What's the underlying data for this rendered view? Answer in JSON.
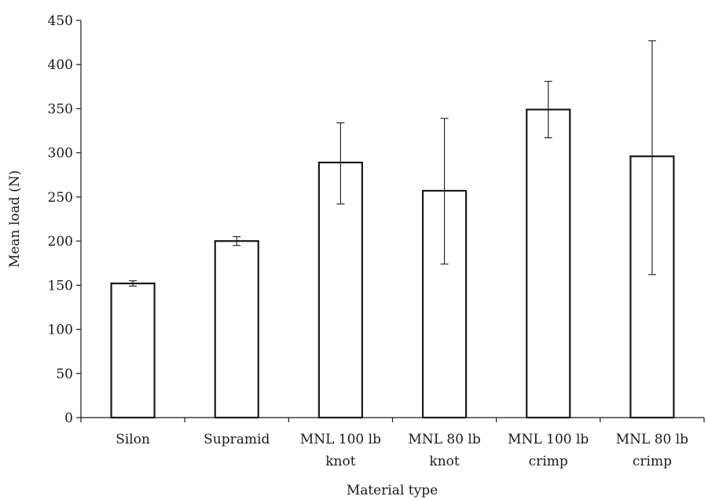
{
  "chart_data": {
    "type": "bar",
    "title": "",
    "xlabel": "Material type",
    "ylabel": "Mean load (N)",
    "ylim": [
      0,
      450
    ],
    "yticks": [
      0,
      50,
      100,
      150,
      200,
      250,
      300,
      350,
      400,
      450
    ],
    "categories": [
      [
        "Silon"
      ],
      [
        "Supramid"
      ],
      [
        "MNL 100 lb",
        "knot"
      ],
      [
        "MNL 80 lb",
        "knot"
      ],
      [
        "MNL 100 lb",
        "crimp"
      ],
      [
        "MNL 80 lb",
        "crimp"
      ]
    ],
    "values": [
      152,
      200,
      289,
      257,
      349,
      296
    ],
    "error_low": [
      149,
      195,
      242,
      174,
      317,
      162
    ],
    "error_high": [
      155,
      205,
      334,
      339,
      381,
      427
    ],
    "bar_fill": "#ffffff",
    "bar_stroke": "#1a1a1a",
    "grid": false,
    "legend": "none"
  }
}
